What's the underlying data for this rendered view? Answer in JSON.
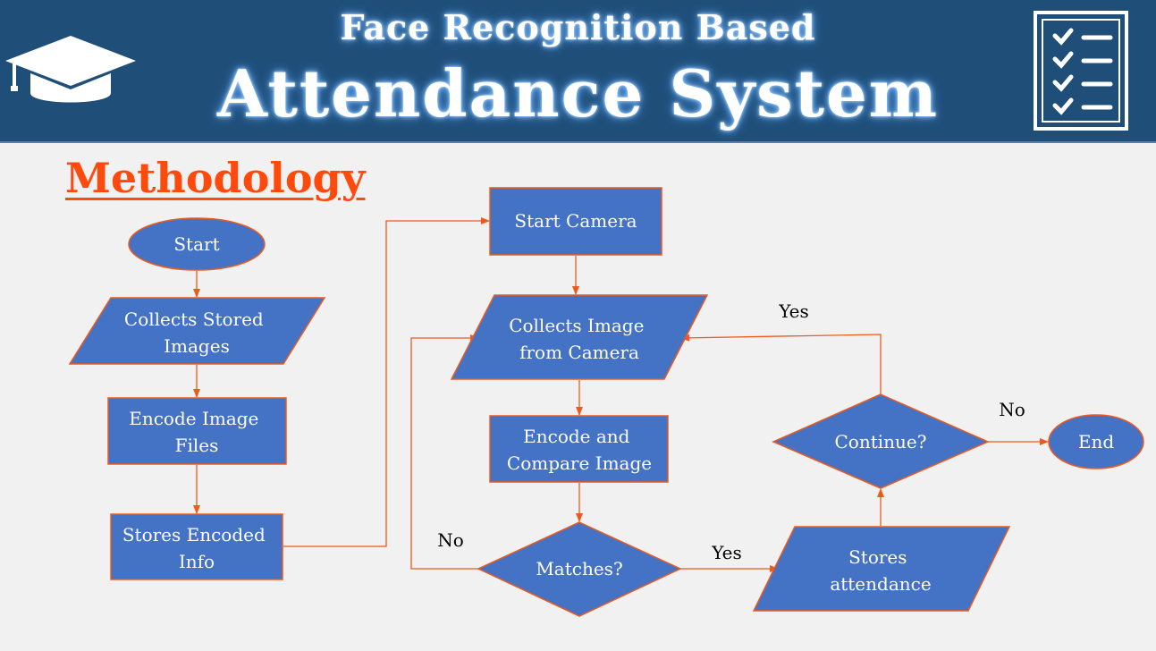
{
  "header": {
    "title_line1": "Face Recognition Based",
    "title_line2": "Attendance System",
    "left_icon": "graduation-cap-icon",
    "right_icon": "checklist-icon"
  },
  "section_title": "Methodology",
  "colors": {
    "header_bg": "#1f4e79",
    "node_fill": "#4472c4",
    "node_stroke": "#ed5a1d",
    "arrow": "#ed5a1d",
    "section_title": "#ff4a0e",
    "canvas_bg": "#f1f1f1"
  },
  "nodes": {
    "start": {
      "shape": "ellipse",
      "lines": [
        "Start"
      ]
    },
    "collect_stored": {
      "shape": "parallelogram",
      "lines": [
        "Collects Stored",
        "Images"
      ]
    },
    "encode_files": {
      "shape": "process",
      "lines": [
        "Encode Image",
        "Files"
      ]
    },
    "store_encoded": {
      "shape": "process",
      "lines": [
        "Stores Encoded",
        "Info"
      ]
    },
    "start_camera": {
      "shape": "process",
      "lines": [
        "Start Camera"
      ]
    },
    "collect_camera": {
      "shape": "parallelogram",
      "lines": [
        "Collects Image",
        "from Camera"
      ]
    },
    "encode_compare": {
      "shape": "process",
      "lines": [
        "Encode and",
        "Compare Image"
      ]
    },
    "matches": {
      "shape": "decision",
      "lines": [
        "Matches?"
      ]
    },
    "store_attendance": {
      "shape": "parallelogram",
      "lines": [
        "Stores",
        "attendance"
      ]
    },
    "continue": {
      "shape": "decision",
      "lines": [
        "Continue?"
      ]
    },
    "end": {
      "shape": "ellipse",
      "lines": [
        "End"
      ]
    }
  },
  "edge_labels": {
    "matches_no": "No",
    "matches_yes": "Yes",
    "continue_yes": "Yes",
    "continue_no": "No"
  }
}
